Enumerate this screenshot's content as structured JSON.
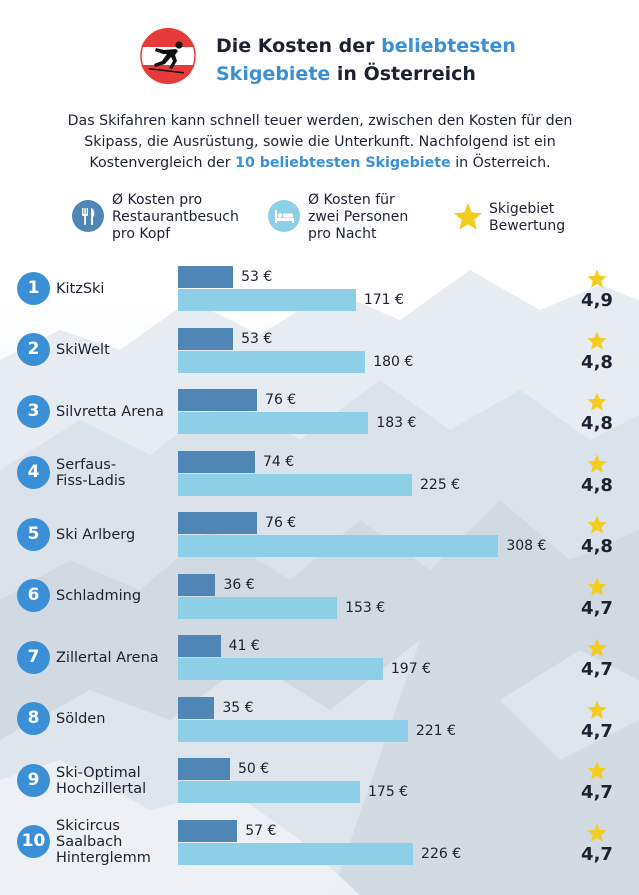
{
  "header": {
    "title_part1": "Die Kosten der ",
    "title_highlight1": "beliebtesten",
    "title_highlight2": "Skigebiete",
    "title_part2": " in Österreich"
  },
  "intro": {
    "line1": "Das Skifahren kann schnell teuer werden, zwischen den Kosten für den",
    "line2": "Skipass, die Ausrüstung, sowie die Unterkunft. Nachfolgend ist ein",
    "line3_pre": "Kostenvergleich der ",
    "line3_highlight": "10 beliebtesten Skigebiete",
    "line3_post": "  in Österreich."
  },
  "legend": [
    {
      "icon": "cutlery-icon",
      "text": "Ø Kosten pro\nRestaurantbesuch\npro Kopf",
      "color": "#4f86b6"
    },
    {
      "icon": "bed-icon",
      "text": "Ø Kosten für\nzwei Personen\npro Nacht",
      "color": "#8ccfe6"
    },
    {
      "icon": "star-icon",
      "text": "Skigebiet\nBewertung",
      "color": "#f2cc1f"
    }
  ],
  "colors": {
    "accent": "#3a8fd6",
    "restaurant": "#4f86b6",
    "lodging": "#8ccfe6",
    "star": "#f2cc1f"
  },
  "chart_data": {
    "type": "bar",
    "title": "Die Kosten der beliebtesten Skigebiete in Österreich",
    "xlabel": "",
    "ylabel": "",
    "unit": "€",
    "xlim": [
      0,
      315
    ],
    "categories": [
      "KitzSki",
      "SkiWelt",
      "Silvretta Arena",
      "Serfaus-\nFiss-Ladis",
      "Ski Arlberg",
      "Schladming",
      "Zillertal Arena",
      "Sölden",
      "Ski-Optimal\nHochzillertal",
      "Skicircus\nSaalbach\nHinterglemm"
    ],
    "ranks": [
      "1",
      "2",
      "3",
      "4",
      "5",
      "6",
      "7",
      "8",
      "9",
      "10"
    ],
    "series": [
      {
        "name": "Ø Kosten pro Restaurantbesuch pro Kopf",
        "values": [
          53,
          53,
          76,
          74,
          76,
          36,
          41,
          35,
          50,
          57
        ],
        "labels": [
          "53 €",
          "53 €",
          "76 €",
          "74 €",
          "76 €",
          "36 €",
          "41 €",
          "35 €",
          "50 €",
          "57 €"
        ]
      },
      {
        "name": "Ø Kosten für zwei Personen pro Nacht",
        "values": [
          171,
          180,
          183,
          225,
          308,
          153,
          197,
          221,
          175,
          226
        ],
        "labels": [
          "171 €",
          "180 €",
          "183 €",
          "225 €",
          "308 €",
          "153 €",
          "197 €",
          "221 €",
          "175 €",
          "226 €"
        ]
      }
    ],
    "ratings": [
      "4,9",
      "4,8",
      "4,8",
      "4,8",
      "4,8",
      "4,7",
      "4,7",
      "4,7",
      "4,7",
      "4,7"
    ],
    "legend_position": "top"
  }
}
